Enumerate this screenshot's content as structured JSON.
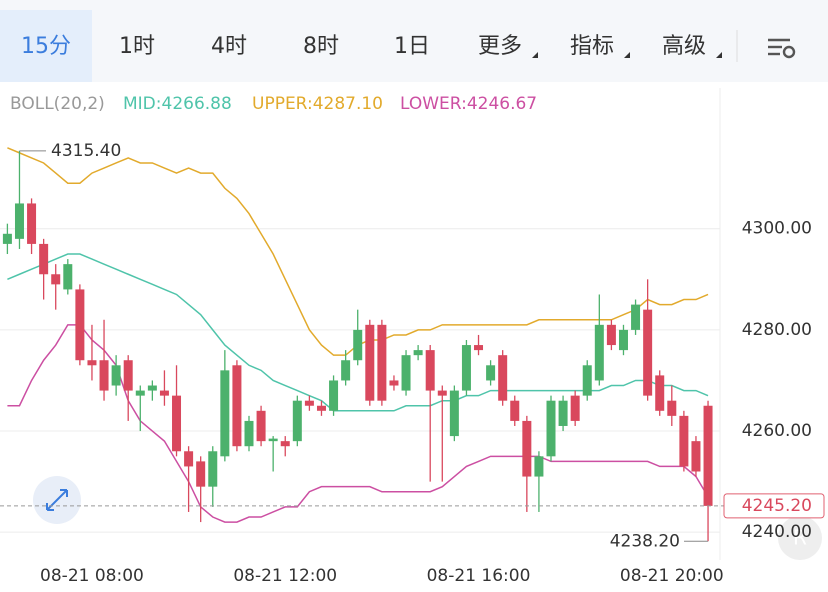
{
  "tabs": [
    "15分",
    "1时",
    "4时",
    "8时",
    "1日",
    "更多",
    "指标",
    "高级"
  ],
  "chart_data": {
    "type": "candlestick",
    "indicator": "BOLL(20,2)",
    "categories": [
      null,
      null,
      null,
      null,
      null,
      null,
      null,
      "08-21 08:00",
      null,
      null,
      null,
      null,
      null,
      null,
      null,
      null,
      null,
      null,
      null,
      null,
      null,
      null,
      null,
      "08-21 12:00",
      null,
      null,
      null,
      null,
      null,
      null,
      null,
      null,
      null,
      null,
      null,
      null,
      null,
      null,
      null,
      "08-21 16:00",
      null,
      null,
      null,
      null,
      null,
      null,
      null,
      null,
      null,
      null,
      null,
      null,
      null,
      null,
      null,
      "08-21 20:00",
      null,
      null,
      null
    ],
    "open": [
      4297,
      4298,
      4305,
      4297,
      4291,
      4288,
      4288,
      4274,
      4274,
      4269,
      4274,
      4267,
      4268,
      4268,
      4267,
      4256,
      4254,
      4249,
      4255,
      4273,
      4257,
      4264,
      4258,
      4258,
      4258,
      4266,
      4265,
      4264,
      4270,
      4274,
      4281,
      4281,
      4270,
      4268,
      4275,
      4276,
      4268,
      4259,
      4268,
      4277,
      4270,
      4275,
      4266,
      4262,
      4251,
      4255,
      4261,
      4267,
      4267,
      4270,
      4281,
      4276,
      4280,
      4284,
      4271,
      4266,
      4263,
      4258,
      4265
    ],
    "high": [
      4301,
      4315.4,
      4306,
      4298,
      4293,
      4294,
      4289,
      4281,
      4282,
      4275,
      4275,
      4269,
      4270,
      4272,
      4273,
      4257,
      4255,
      4257,
      4276,
      4274,
      4263,
      4265,
      4259,
      4259,
      4267,
      4267,
      4266,
      4271,
      4276,
      4284,
      4282,
      4282,
      4271,
      4276,
      4277,
      4277,
      4269,
      4269,
      4278,
      4279,
      4274,
      4276,
      4267,
      4263,
      4256,
      4267,
      4267,
      4268,
      4274,
      4287,
      4282,
      4281,
      4286,
      4290,
      4272,
      4269,
      4264,
      4259,
      4266
    ],
    "low": [
      4295,
      4296,
      4295,
      4286,
      4284,
      4287,
      4273,
      4270,
      4266,
      4267,
      4262,
      4260,
      4266,
      4265,
      4255,
      4244,
      4242,
      4245,
      4254,
      4256,
      4256,
      4257,
      4252,
      4255,
      4257,
      4264,
      4263,
      4263,
      4269,
      4273,
      4265,
      4265,
      4268,
      4267,
      4274,
      4250,
      4250,
      4258,
      4267,
      4275,
      4269,
      4265,
      4261,
      4244,
      4244,
      4254,
      4260,
      4261,
      4266,
      4269,
      4276,
      4275,
      4279,
      4266,
      4263,
      4261,
      4252,
      4251,
      4238.2
    ],
    "close": [
      4299,
      4305,
      4297,
      4291,
      4289,
      4293,
      4274,
      4273,
      4268,
      4273,
      4268,
      4268,
      4269,
      4267,
      4256,
      4253,
      4249,
      4256,
      4272,
      4257,
      4262,
      4258,
      4258.5,
      4257,
      4266,
      4265,
      4264,
      4270,
      4274,
      4280,
      4266,
      4266,
      4269,
      4275,
      4276,
      4268,
      4267,
      4268,
      4277,
      4276,
      4273,
      4266,
      4262,
      4251,
      4255,
      4266,
      4266,
      4262,
      4273,
      4281,
      4277,
      4280,
      4285,
      4267,
      4264,
      4263,
      4253,
      4252,
      4245.2
    ],
    "up_color": "#4cb16c",
    "down_color": "#d9485d",
    "series": [
      {
        "name": "MID:4266.88",
        "color": "#4fc4aa",
        "values": [
          4290,
          4291,
          4292,
          4293,
          4294,
          4295,
          4295,
          4294,
          4293,
          4292,
          4291,
          4290,
          4289,
          4288,
          4287,
          4285,
          4283,
          4280,
          4277,
          4275,
          4273,
          4272,
          4270,
          4269,
          4268,
          4267,
          4266,
          4264,
          4264,
          4264,
          4264,
          4264,
          4264,
          4265,
          4265,
          4265,
          4266,
          4266,
          4267,
          4267,
          4268,
          4268,
          4268,
          4268,
          4268,
          4268,
          4268,
          4268,
          4268,
          4268,
          4269,
          4269,
          4270,
          4270,
          4269,
          4269,
          4268,
          4268,
          4267
        ]
      },
      {
        "name": "UPPER:4287.10",
        "color": "#e2aa2c",
        "values": [
          4316,
          4315,
          4314,
          4313,
          4311,
          4309,
          4309,
          4311,
          4312,
          4313,
          4314,
          4313,
          4313,
          4312,
          4311,
          4312,
          4311,
          4311,
          4308,
          4306,
          4303,
          4299,
          4295,
          4290,
          4285,
          4280,
          4277,
          4275,
          4275,
          4277,
          4278,
          4278,
          4279,
          4279,
          4280,
          4280,
          4281,
          4281,
          4281,
          4281,
          4281,
          4281,
          4281,
          4281,
          4282,
          4282,
          4282,
          4282,
          4282,
          4282,
          4282,
          4283,
          4284,
          4286,
          4285,
          4285,
          4286,
          4286,
          4287
        ]
      },
      {
        "name": "LOWER:4246.67",
        "color": "#cc4fa2",
        "values": [
          4265,
          4265,
          4270,
          4274,
          4277,
          4281,
          4281,
          4278,
          4276,
          4273,
          4266,
          4262,
          4260,
          4258,
          4254,
          4250,
          4245,
          4243,
          4242,
          4242,
          4243,
          4243,
          4244,
          4245,
          4245,
          4248,
          4249,
          4249,
          4249,
          4249,
          4249,
          4248,
          4248,
          4248,
          4248,
          4248,
          4249,
          4251,
          4253,
          4254,
          4255,
          4255,
          4255,
          4255,
          4255,
          4254,
          4254,
          4254,
          4254,
          4254,
          4254,
          4254,
          4254,
          4254,
          4253,
          4253,
          4253,
          4251,
          4247
        ]
      }
    ],
    "ylim": [
      4234.5,
      4321.5
    ],
    "yticks": [
      {
        "value": 4240,
        "label": "4240.00"
      },
      {
        "value": 4260,
        "label": "4260.00"
      },
      {
        "value": 4280,
        "label": "4280.00"
      },
      {
        "value": 4300,
        "label": "4300.00"
      }
    ],
    "grid": true,
    "high_marker": {
      "value": 4315.4,
      "label": "4315.40"
    },
    "low_marker": {
      "value": 4238.2,
      "label": "4238.20"
    },
    "last_price": {
      "value": 4245.2,
      "label": "4245.20"
    }
  }
}
